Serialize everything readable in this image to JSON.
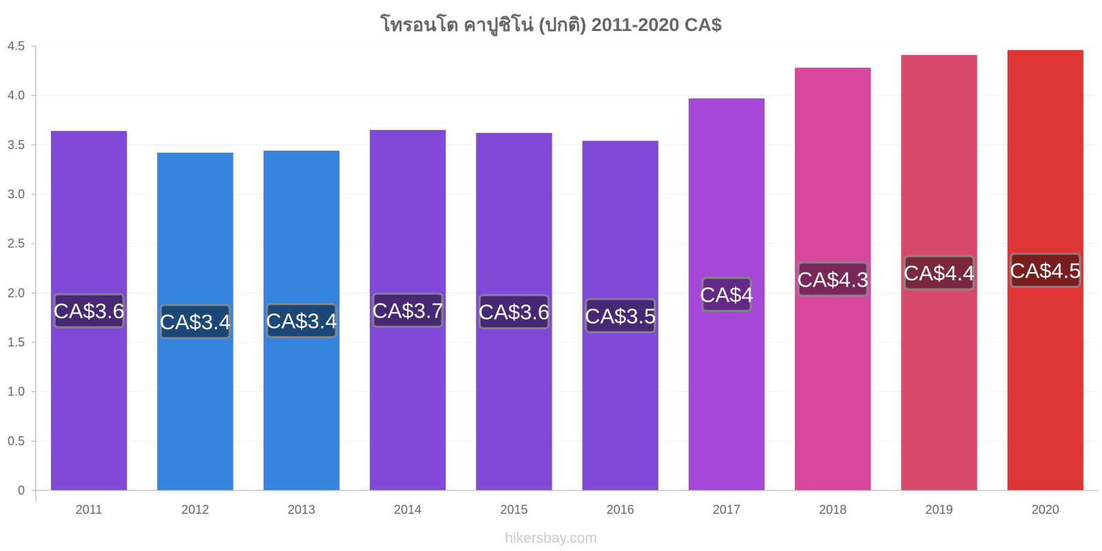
{
  "chart_data": {
    "type": "bar",
    "title": "โทรอนโต คาปูชิโน่ (ปกติ) 2011-2020 CA$",
    "categories": [
      "2011",
      "2012",
      "2013",
      "2014",
      "2015",
      "2016",
      "2017",
      "2018",
      "2019",
      "2020"
    ],
    "values": [
      3.64,
      3.42,
      3.44,
      3.65,
      3.62,
      3.54,
      3.97,
      4.28,
      4.41,
      4.46
    ],
    "data_labels": [
      "CA$3.6",
      "CA$3.4",
      "CA$3.4",
      "CA$3.7",
      "CA$3.6",
      "CA$3.5",
      "CA$4",
      "CA$4.3",
      "CA$4.4",
      "CA$4.5"
    ],
    "bar_colors": [
      "#8049d8",
      "#3584df",
      "#3584df",
      "#8049d8",
      "#8049d8",
      "#8049d8",
      "#a548d8",
      "#d9479d",
      "#d84a6b",
      "#e03535"
    ],
    "label_bg_colors": [
      "#3d2366",
      "#18406b",
      "#18406b",
      "#3d2366",
      "#3d2366",
      "#3d2366",
      "#5a2478",
      "#6b2350",
      "#6b2338",
      "#6b1a1a"
    ],
    "ylim": [
      0,
      4.5
    ],
    "yticks": [
      "0",
      "0.5",
      "1.0",
      "1.5",
      "2.0",
      "2.5",
      "3.0",
      "3.5",
      "4.0",
      "4.5"
    ],
    "xlabel": "",
    "ylabel": "",
    "grid": true,
    "legend": "none"
  },
  "watermark": "hikersbay.com"
}
